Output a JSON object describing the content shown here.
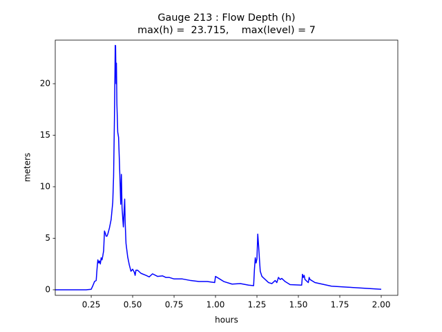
{
  "chart_data": {
    "type": "line",
    "title": [
      "Gauge 213 : Flow Depth (h)",
      "max(h) =  23.715,    max(level) = 7"
    ],
    "xlabel": "hours",
    "ylabel": "meters",
    "xlim": [
      0.033,
      2.1
    ],
    "ylim": [
      -0.54,
      24.23
    ],
    "xticks": [
      0.25,
      {
        "value": 0.5,
        "label": "0.50"
      },
      0.75,
      {
        "value": 1.0,
        "label": "1.00"
      },
      1.25,
      {
        "value": 1.5,
        "label": "1.50"
      },
      1.75,
      {
        "value": 2.0,
        "label": "2.00"
      }
    ],
    "yticks": [
      0,
      5,
      10,
      15,
      20
    ],
    "x": [
      0.033,
      0.22,
      0.25,
      0.26,
      0.27,
      0.28,
      0.285,
      0.29,
      0.295,
      0.3,
      0.305,
      0.31,
      0.315,
      0.32,
      0.325,
      0.33,
      0.335,
      0.34,
      0.345,
      0.35,
      0.36,
      0.37,
      0.38,
      0.385,
      0.39,
      0.395,
      0.397,
      0.4,
      0.402,
      0.405,
      0.41,
      0.415,
      0.42,
      0.425,
      0.428,
      0.432,
      0.436,
      0.44,
      0.444,
      0.448,
      0.452,
      0.455,
      0.46,
      0.47,
      0.48,
      0.49,
      0.5,
      0.51,
      0.515,
      0.52,
      0.53,
      0.55,
      0.58,
      0.6,
      0.62,
      0.65,
      0.68,
      0.7,
      0.72,
      0.75,
      0.8,
      0.85,
      0.9,
      0.95,
      0.995,
      1.0,
      1.02,
      1.05,
      1.1,
      1.15,
      1.2,
      1.23,
      1.235,
      1.24,
      1.245,
      1.25,
      1.255,
      1.26,
      1.265,
      1.27,
      1.28,
      1.3,
      1.32,
      1.34,
      1.36,
      1.37,
      1.38,
      1.39,
      1.4,
      1.42,
      1.45,
      1.52,
      1.525,
      1.53,
      1.535,
      1.54,
      1.56,
      1.565,
      1.57,
      1.6,
      1.7,
      1.8,
      1.9,
      2.0
    ],
    "series": [
      {
        "color": "#0000ff",
        "values": [
          0,
          0,
          0.05,
          0.4,
          0.8,
          0.9,
          2.0,
          2.9,
          2.6,
          2.8,
          2.5,
          3.1,
          2.9,
          3.3,
          3.8,
          5.7,
          5.5,
          5.2,
          5.2,
          5.4,
          6.0,
          6.8,
          8.5,
          11,
          16.5,
          23.715,
          23.7,
          20,
          22,
          18,
          15.3,
          14.8,
          12.5,
          10,
          8.3,
          11.2,
          8,
          7,
          6.1,
          7.5,
          8.8,
          6.5,
          4.5,
          3.2,
          2.4,
          1.8,
          2.0,
          1.7,
          1.4,
          1.9,
          1.9,
          1.6,
          1.4,
          1.25,
          1.55,
          1.3,
          1.35,
          1.2,
          1.2,
          1.05,
          1.05,
          0.9,
          0.8,
          0.8,
          0.7,
          1.3,
          1.1,
          0.8,
          0.55,
          0.6,
          0.45,
          0.4,
          2.0,
          3.1,
          2.6,
          3.0,
          5.4,
          4.3,
          3.0,
          1.8,
          1.3,
          1.0,
          0.7,
          0.6,
          0.9,
          0.7,
          1.2,
          1.0,
          1.1,
          0.8,
          0.5,
          0.45,
          1.5,
          1.2,
          1.4,
          1.0,
          0.7,
          1.2,
          1.0,
          0.7,
          0.35,
          0.25,
          0.15,
          0.05
        ]
      }
    ]
  }
}
